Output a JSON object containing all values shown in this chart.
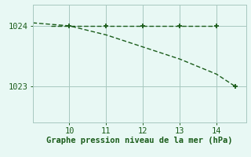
{
  "x_flat": [
    9.5,
    10.0,
    11.0,
    12.0,
    13.0,
    14.0
  ],
  "y_flat": [
    1024.0,
    1024.0,
    1024.0,
    1024.0,
    1024.0,
    1024.0
  ],
  "x_diag": [
    9.0,
    10.0,
    11.0,
    12.0,
    13.0,
    14.0,
    14.5
  ],
  "y_diag": [
    1024.05,
    1024.0,
    1023.85,
    1023.65,
    1023.45,
    1023.2,
    1023.0
  ],
  "marker_x": [
    10.0,
    11.0,
    12.0,
    13.0,
    14.0
  ],
  "marker_y": [
    1024.0,
    1024.0,
    1024.0,
    1024.0,
    1024.0
  ],
  "end_marker_x": [
    14.5
  ],
  "end_marker_y": [
    1023.0
  ],
  "line_color": "#1a5c1a",
  "marker_color": "#1a5c1a",
  "bg_color": "#e8f8f4",
  "grid_color": "#a8c8c0",
  "xlabel": "Graphe pression niveau de la mer (hPa)",
  "xlim": [
    9.0,
    14.8
  ],
  "ylim": [
    1022.4,
    1024.35
  ],
  "xticks": [
    10,
    11,
    12,
    13,
    14
  ],
  "yticks": [
    1023,
    1024
  ],
  "xlabel_fontsize": 7.5,
  "tick_fontsize": 7.5
}
